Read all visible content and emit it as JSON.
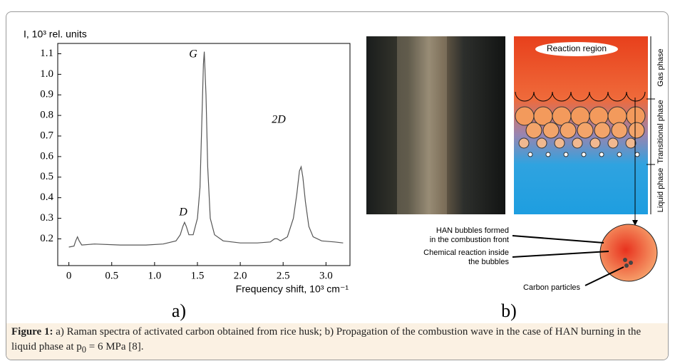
{
  "chart_data": {
    "type": "line",
    "ylabel": "I, 10³ rel. units",
    "xlabel": "Frequency shift, 10³ cm⁻¹",
    "annotations": [
      "G",
      "D",
      "2D"
    ],
    "x": [
      0,
      0.06,
      0.08,
      0.1,
      0.12,
      0.15,
      0.3,
      0.6,
      0.9,
      1.1,
      1.25,
      1.3,
      1.33,
      1.35,
      1.37,
      1.4,
      1.45,
      1.5,
      1.53,
      1.55,
      1.57,
      1.58,
      1.6,
      1.62,
      1.65,
      1.7,
      1.8,
      2.0,
      2.2,
      2.35,
      2.4,
      2.43,
      2.47,
      2.55,
      2.62,
      2.66,
      2.69,
      2.71,
      2.73,
      2.76,
      2.8,
      2.85,
      2.95,
      3.1,
      3.2
    ],
    "values": [
      0.16,
      0.165,
      0.19,
      0.21,
      0.19,
      0.17,
      0.175,
      0.17,
      0.17,
      0.175,
      0.19,
      0.22,
      0.26,
      0.28,
      0.26,
      0.22,
      0.22,
      0.3,
      0.45,
      0.75,
      1.05,
      1.11,
      0.9,
      0.55,
      0.3,
      0.22,
      0.19,
      0.18,
      0.18,
      0.185,
      0.2,
      0.2,
      0.19,
      0.21,
      0.3,
      0.42,
      0.53,
      0.55,
      0.5,
      0.38,
      0.26,
      0.21,
      0.19,
      0.185,
      0.18
    ],
    "color": "#555555",
    "xlim": [
      -0.13,
      3.28
    ],
    "ylim": [
      0.07,
      1.15
    ],
    "xticks": [
      0,
      0.5,
      {
        "value": 1,
        "label": "1.0"
      },
      1.5,
      {
        "value": 2,
        "label": "2.0"
      },
      2.5,
      {
        "value": 3,
        "label": "3.0"
      }
    ],
    "yticks": [
      0.2,
      0.3,
      0.4,
      0.5,
      0.6,
      0.7,
      0.8,
      0.9,
      {
        "value": 1,
        "label": "1.0"
      },
      1.1
    ]
  },
  "diagram": {
    "region": "Reaction region",
    "phases": [
      "Gas phase",
      "Transitional phase",
      "Liquid phase"
    ],
    "labels": [
      [
        "HAN bubbles formed",
        "in the combustion front"
      ],
      [
        "Chemical reaction inside",
        "the bubbles"
      ],
      [
        "Carbon particles"
      ]
    ]
  },
  "panel_labels": [
    "a)",
    "b)"
  ],
  "caption": {
    "label": "Figure 1:",
    "text_before": " a) Raman spectra of activated carbon obtained from rice husk; b) Propagation of the combustion wave in the case of HAN burning in the liquid phase at p",
    "subscript": "0",
    "text_after": " = 6 MPa [8]."
  }
}
